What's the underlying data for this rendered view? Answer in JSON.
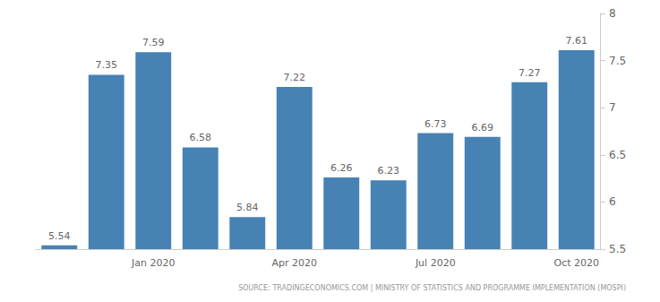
{
  "chart_data": {
    "type": "bar",
    "categories": [
      null,
      null,
      "Jan 2020",
      null,
      null,
      "Apr 2020",
      null,
      null,
      "Jul 2020",
      null,
      null,
      "Oct 2020"
    ],
    "values": [
      5.54,
      7.35,
      7.59,
      6.58,
      5.84,
      7.22,
      6.26,
      6.23,
      6.73,
      6.69,
      7.27,
      7.61
    ],
    "color": "#4682b4",
    "ylim": [
      5.5,
      8
    ],
    "yticks": [
      5.5,
      6,
      6.5,
      7,
      7.5,
      8
    ],
    "grid": false,
    "data_labels": true,
    "source": "SOURCE: TRADINGECONOMICS.COM | MINISTRY OF STATISTICS AND PROGRAMME IMPLEMENTATION (MOSPI)"
  }
}
